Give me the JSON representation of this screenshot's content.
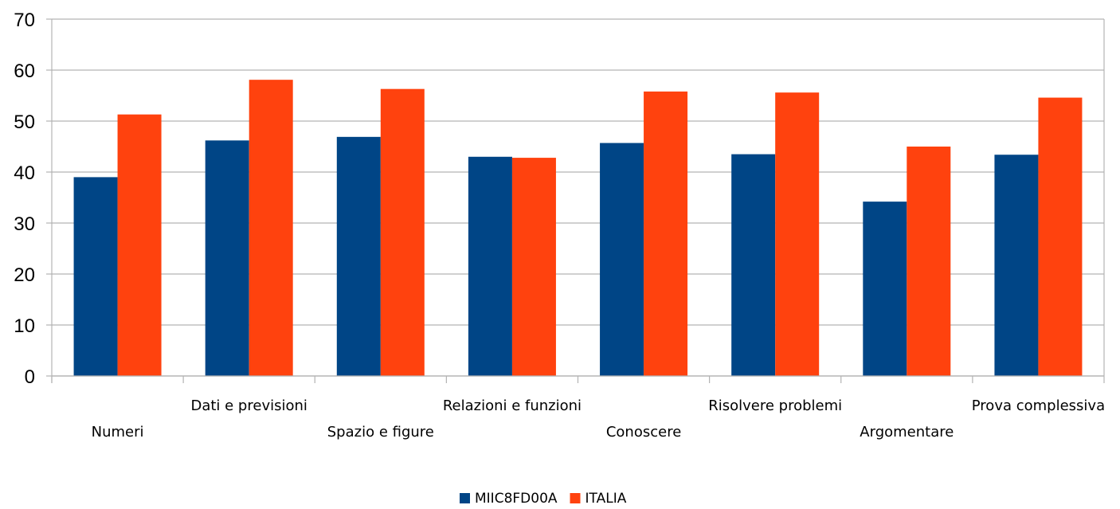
{
  "chart_data": {
    "type": "bar",
    "categories": [
      "Numeri",
      "Dati e previsioni",
      "Spazio e figure",
      "Relazioni e funzioni",
      "Conoscere",
      "Risolvere problemi",
      "Argomentare",
      "Prova complessiva"
    ],
    "series": [
      {
        "name": "MIIC8FD00A",
        "color": "#004586",
        "values": [
          39,
          46.2,
          46.9,
          43,
          45.7,
          43.5,
          34.2,
          43.4
        ]
      },
      {
        "name": "ITALIA",
        "color": "#ff420e",
        "values": [
          51.3,
          58.1,
          56.3,
          42.8,
          55.8,
          55.6,
          45,
          54.6
        ]
      }
    ],
    "yticks": [
      "0",
      "10",
      "20",
      "30",
      "40",
      "50",
      "60",
      "70"
    ],
    "ylim": [
      0,
      70
    ],
    "grid": true,
    "legend_position": "bottom-center"
  }
}
